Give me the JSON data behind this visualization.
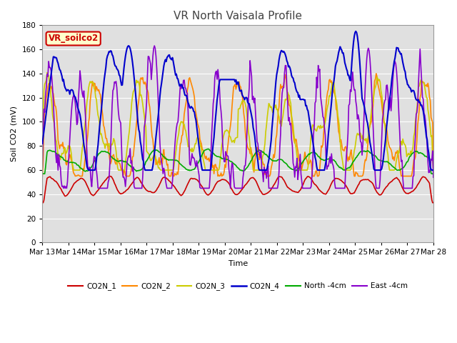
{
  "title": "VR North Vaisala Profile",
  "xlabel": "Time",
  "ylabel": "Soil CO2 (mV)",
  "ylim": [
    0,
    180
  ],
  "yticks": [
    0,
    20,
    40,
    60,
    80,
    100,
    120,
    140,
    160,
    180
  ],
  "legend_label": "VR_soilco2",
  "series": {
    "CO2N_1": {
      "color": "#cc0000",
      "lw": 1.2
    },
    "CO2N_2": {
      "color": "#ff8800",
      "lw": 1.2
    },
    "CO2N_3": {
      "color": "#cccc00",
      "lw": 1.2
    },
    "CO2N_4": {
      "color": "#0000cc",
      "lw": 1.5
    },
    "North -4cm": {
      "color": "#00aa00",
      "lw": 1.2
    },
    "East -4cm": {
      "color": "#8800cc",
      "lw": 1.2
    }
  },
  "x_tick_labels": [
    "Mar 13",
    "Mar 14",
    "Mar 15",
    "Mar 16",
    "Mar 17",
    "Mar 18",
    "Mar 19",
    "Mar 20",
    "Mar 21",
    "Mar 22",
    "Mar 23",
    "Mar 24",
    "Mar 25",
    "Mar 26",
    "Mar 27",
    "Mar 28"
  ],
  "fig_bg_color": "#ffffff",
  "plot_bg_color": "#e0e0e0",
  "grid_color": "#ffffff",
  "title_fontsize": 11,
  "axis_fontsize": 8,
  "tick_fontsize": 7.5
}
